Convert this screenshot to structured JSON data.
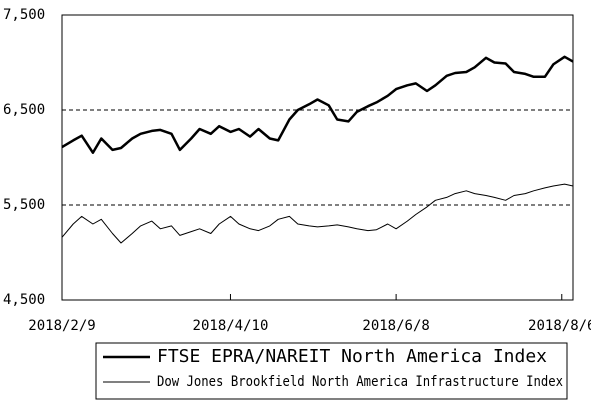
{
  "chart_data": {
    "type": "line",
    "x": [
      "2018/2/9",
      "2018/2/13",
      "2018/2/16",
      "2018/2/20",
      "2018/2/23",
      "2018/2/27",
      "2018/3/2",
      "2018/3/6",
      "2018/3/9",
      "2018/3/13",
      "2018/3/16",
      "2018/3/20",
      "2018/3/23",
      "2018/3/27",
      "2018/3/30",
      "2018/4/3",
      "2018/4/6",
      "2018/4/10",
      "2018/4/13",
      "2018/4/17",
      "2018/4/20",
      "2018/4/24",
      "2018/4/27",
      "2018/5/1",
      "2018/5/4",
      "2018/5/8",
      "2018/5/11",
      "2018/5/15",
      "2018/5/18",
      "2018/5/22",
      "2018/5/25",
      "2018/5/29",
      "2018/6/1",
      "2018/6/5",
      "2018/6/8",
      "2018/6/12",
      "2018/6/15",
      "2018/6/19",
      "2018/6/22",
      "2018/6/26",
      "2018/6/29",
      "2018/7/3",
      "2018/7/6",
      "2018/7/10",
      "2018/7/13",
      "2018/7/17",
      "2018/7/20",
      "2018/7/24",
      "2018/7/27",
      "2018/7/31",
      "2018/8/3",
      "2018/8/7",
      "2018/8/10"
    ],
    "series": [
      {
        "name": "FTSE EPRA/NAREIT North America Index",
        "color": "#000000",
        "width": 2.5,
        "values": [
          6110,
          6180,
          6230,
          6050,
          6200,
          6080,
          6100,
          6200,
          6250,
          6280,
          6290,
          6250,
          6080,
          6200,
          6300,
          6250,
          6330,
          6270,
          6300,
          6220,
          6300,
          6200,
          6180,
          6400,
          6500,
          6560,
          6610,
          6550,
          6400,
          6380,
          6480,
          6540,
          6580,
          6650,
          6720,
          6760,
          6780,
          6700,
          6760,
          6860,
          6890,
          6900,
          6950,
          7050,
          7000,
          6990,
          6900,
          6880,
          6850,
          6850,
          6980,
          7060,
          7010
        ]
      },
      {
        "name": "Dow Jones Brookfield North America Infrastructure Index",
        "color": "#000000",
        "width": 1,
        "values": [
          5160,
          5300,
          5380,
          5300,
          5350,
          5200,
          5100,
          5200,
          5280,
          5330,
          5250,
          5280,
          5180,
          5220,
          5250,
          5200,
          5300,
          5380,
          5300,
          5250,
          5230,
          5280,
          5350,
          5380,
          5300,
          5280,
          5270,
          5280,
          5290,
          5270,
          5250,
          5230,
          5240,
          5300,
          5250,
          5330,
          5400,
          5480,
          5550,
          5580,
          5620,
          5650,
          5620,
          5600,
          5580,
          5550,
          5600,
          5620,
          5650,
          5680,
          5700,
          5720,
          5700
        ]
      }
    ],
    "xlim": [
      "2018/2/9",
      "2018/8/10"
    ],
    "xticks": [
      "2018/2/9",
      "2018/4/10",
      "2018/6/8",
      "2018/8/6"
    ],
    "ylim": [
      4500,
      7500
    ],
    "yticks": [
      {
        "value": 4500,
        "label": "4,500"
      },
      {
        "value": 5500,
        "label": "5,500"
      },
      {
        "value": 6500,
        "label": "6,500"
      },
      {
        "value": 7500,
        "label": "7,500"
      }
    ],
    "grid": true,
    "legend": "bottom"
  }
}
